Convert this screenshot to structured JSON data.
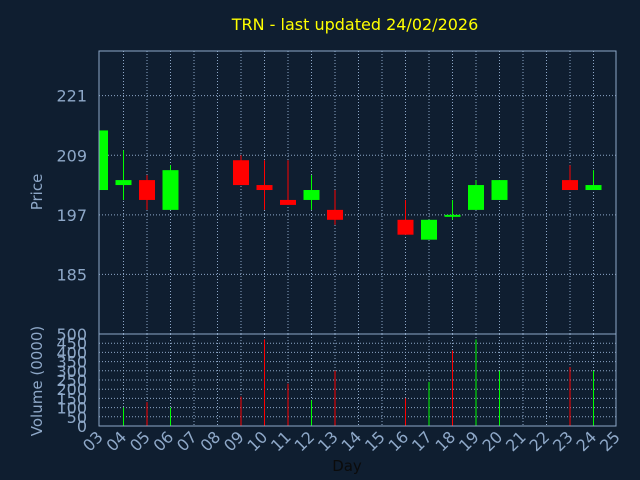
{
  "chart_data": {
    "type": "candlestick",
    "title": "TRN - last updated 24/02/2026",
    "xlabel": "Day",
    "colors": {
      "background": "#0f1e30",
      "frame": "#8ea8c8",
      "grid": "#8ea8c8",
      "title": "#ffff00",
      "labels": "#8ea8c8",
      "up": "#00ff00",
      "down": "#ff0000"
    },
    "x_ticks": [
      "03",
      "04",
      "05",
      "06",
      "07",
      "08",
      "09",
      "10",
      "11",
      "12",
      "13",
      "14",
      "15",
      "16",
      "17",
      "18",
      "19",
      "20",
      "21",
      "22",
      "23",
      "24",
      "25"
    ],
    "price_panel": {
      "ylabel": "Price",
      "ylim": [
        173,
        230
      ],
      "yticks": [
        185,
        197,
        209,
        221
      ],
      "candles": [
        {
          "day": "03",
          "open": 202,
          "high": 214,
          "low": 202,
          "close": 214
        },
        {
          "day": "04",
          "open": 203,
          "high": 210,
          "low": 200,
          "close": 204
        },
        {
          "day": "05",
          "open": 204,
          "high": 205,
          "low": 198,
          "close": 200
        },
        {
          "day": "06",
          "open": 198,
          "high": 207,
          "low": 198,
          "close": 206
        },
        {
          "day": "09",
          "open": 208,
          "high": 209,
          "low": 203,
          "close": 203
        },
        {
          "day": "10",
          "open": 203,
          "high": 208,
          "low": 198,
          "close": 202
        },
        {
          "day": "11",
          "open": 200,
          "high": 208,
          "low": 199,
          "close": 199
        },
        {
          "day": "12",
          "open": 200,
          "high": 205,
          "low": 198,
          "close": 202
        },
        {
          "day": "13",
          "open": 198,
          "high": 202,
          "low": 195,
          "close": 196
        },
        {
          "day": "16",
          "open": 196,
          "high": 200,
          "low": 193,
          "close": 193
        },
        {
          "day": "17",
          "open": 192,
          "high": 196,
          "low": 192,
          "close": 196
        },
        {
          "day": "18",
          "open": 197,
          "high": 200,
          "low": 196,
          "close": 197
        },
        {
          "day": "19",
          "open": 198,
          "high": 204,
          "low": 198,
          "close": 203
        },
        {
          "day": "20",
          "open": 200,
          "high": 204,
          "low": 200,
          "close": 204
        },
        {
          "day": "23",
          "open": 204,
          "high": 207,
          "low": 202,
          "close": 202
        },
        {
          "day": "24",
          "open": 202,
          "high": 206,
          "low": 202,
          "close": 203
        }
      ]
    },
    "volume_panel": {
      "ylabel": "Volume (0000)",
      "ylim": [
        0,
        500
      ],
      "yticks": [
        0,
        50,
        100,
        150,
        200,
        250,
        300,
        350,
        400,
        450,
        500
      ],
      "bars": [
        {
          "day": "04",
          "value": 100,
          "direction": "up"
        },
        {
          "day": "05",
          "value": 130,
          "direction": "down"
        },
        {
          "day": "06",
          "value": 100,
          "direction": "up"
        },
        {
          "day": "09",
          "value": 160,
          "direction": "down"
        },
        {
          "day": "10",
          "value": 470,
          "direction": "down"
        },
        {
          "day": "11",
          "value": 230,
          "direction": "down"
        },
        {
          "day": "12",
          "value": 140,
          "direction": "up"
        },
        {
          "day": "13",
          "value": 300,
          "direction": "down"
        },
        {
          "day": "16",
          "value": 150,
          "direction": "down"
        },
        {
          "day": "17",
          "value": 240,
          "direction": "up"
        },
        {
          "day": "18",
          "value": 410,
          "direction": "down"
        },
        {
          "day": "19",
          "value": 470,
          "direction": "up"
        },
        {
          "day": "20",
          "value": 300,
          "direction": "up"
        },
        {
          "day": "23",
          "value": 320,
          "direction": "down"
        },
        {
          "day": "24",
          "value": 300,
          "direction": "up"
        }
      ]
    }
  }
}
